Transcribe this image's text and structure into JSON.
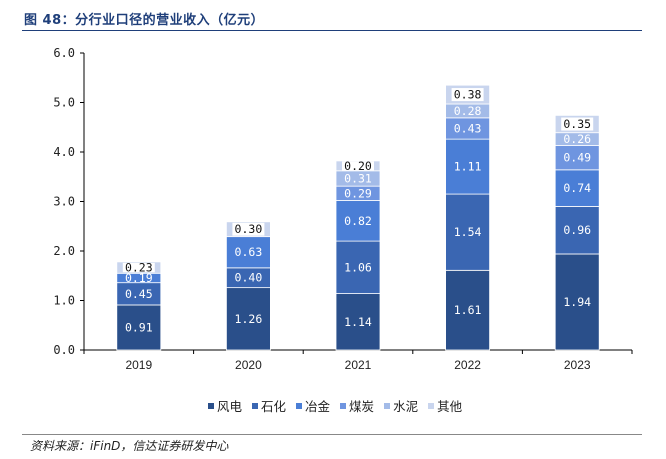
{
  "header": {
    "title": "图 48：分行业口径的营业收入（亿元）"
  },
  "footer": {
    "source": "资料来源：iFinD，信达证券研发中心"
  },
  "chart_data": {
    "type": "bar",
    "stacked": true,
    "title": "图 48：分行业口径的营业收入（亿元）",
    "xlabel": "",
    "ylabel": "",
    "categories": [
      "2019",
      "2020",
      "2021",
      "2022",
      "2023"
    ],
    "ylim": [
      0,
      6
    ],
    "yticks": [
      "0.0",
      "1.0",
      "2.0",
      "3.0",
      "4.0",
      "5.0",
      "6.0"
    ],
    "grid": false,
    "legend_position": "bottom",
    "series": [
      {
        "name": "风电",
        "color": "#2a4f8a",
        "values": [
          0.91,
          1.26,
          1.14,
          1.61,
          1.94
        ],
        "labels": [
          "0.91",
          "1.26",
          "1.14",
          "1.61",
          "1.94"
        ]
      },
      {
        "name": "石化",
        "color": "#3a66b2",
        "values": [
          0.45,
          0.4,
          1.06,
          1.54,
          0.96
        ],
        "labels": [
          "0.45",
          "0.40",
          "1.06",
          "1.54",
          "0.96"
        ]
      },
      {
        "name": "冶金",
        "color": "#4a7ed6",
        "values": [
          0.19,
          0.63,
          0.82,
          1.11,
          0.74
        ],
        "labels": [
          "0.19",
          "0.63",
          "0.82",
          "1.11",
          "0.74"
        ]
      },
      {
        "name": "煤炭",
        "color": "#6f95e0",
        "values": [
          0.0,
          0.0,
          0.29,
          0.43,
          0.49
        ],
        "labels": [
          "",
          "",
          "0.29",
          "0.43",
          "0.49"
        ]
      },
      {
        "name": "水泥",
        "color": "#a3bbe8",
        "values": [
          0.0,
          0.0,
          0.31,
          0.28,
          0.26
        ],
        "labels": [
          "",
          "",
          "0.31",
          "0.28",
          "0.26"
        ]
      },
      {
        "name": "其他",
        "color": "#c9d5ee",
        "values": [
          0.23,
          0.3,
          0.2,
          0.38,
          0.35
        ],
        "labels": [
          "0.23",
          "0.30",
          "0.20",
          "0.38",
          "0.35"
        ]
      }
    ]
  }
}
